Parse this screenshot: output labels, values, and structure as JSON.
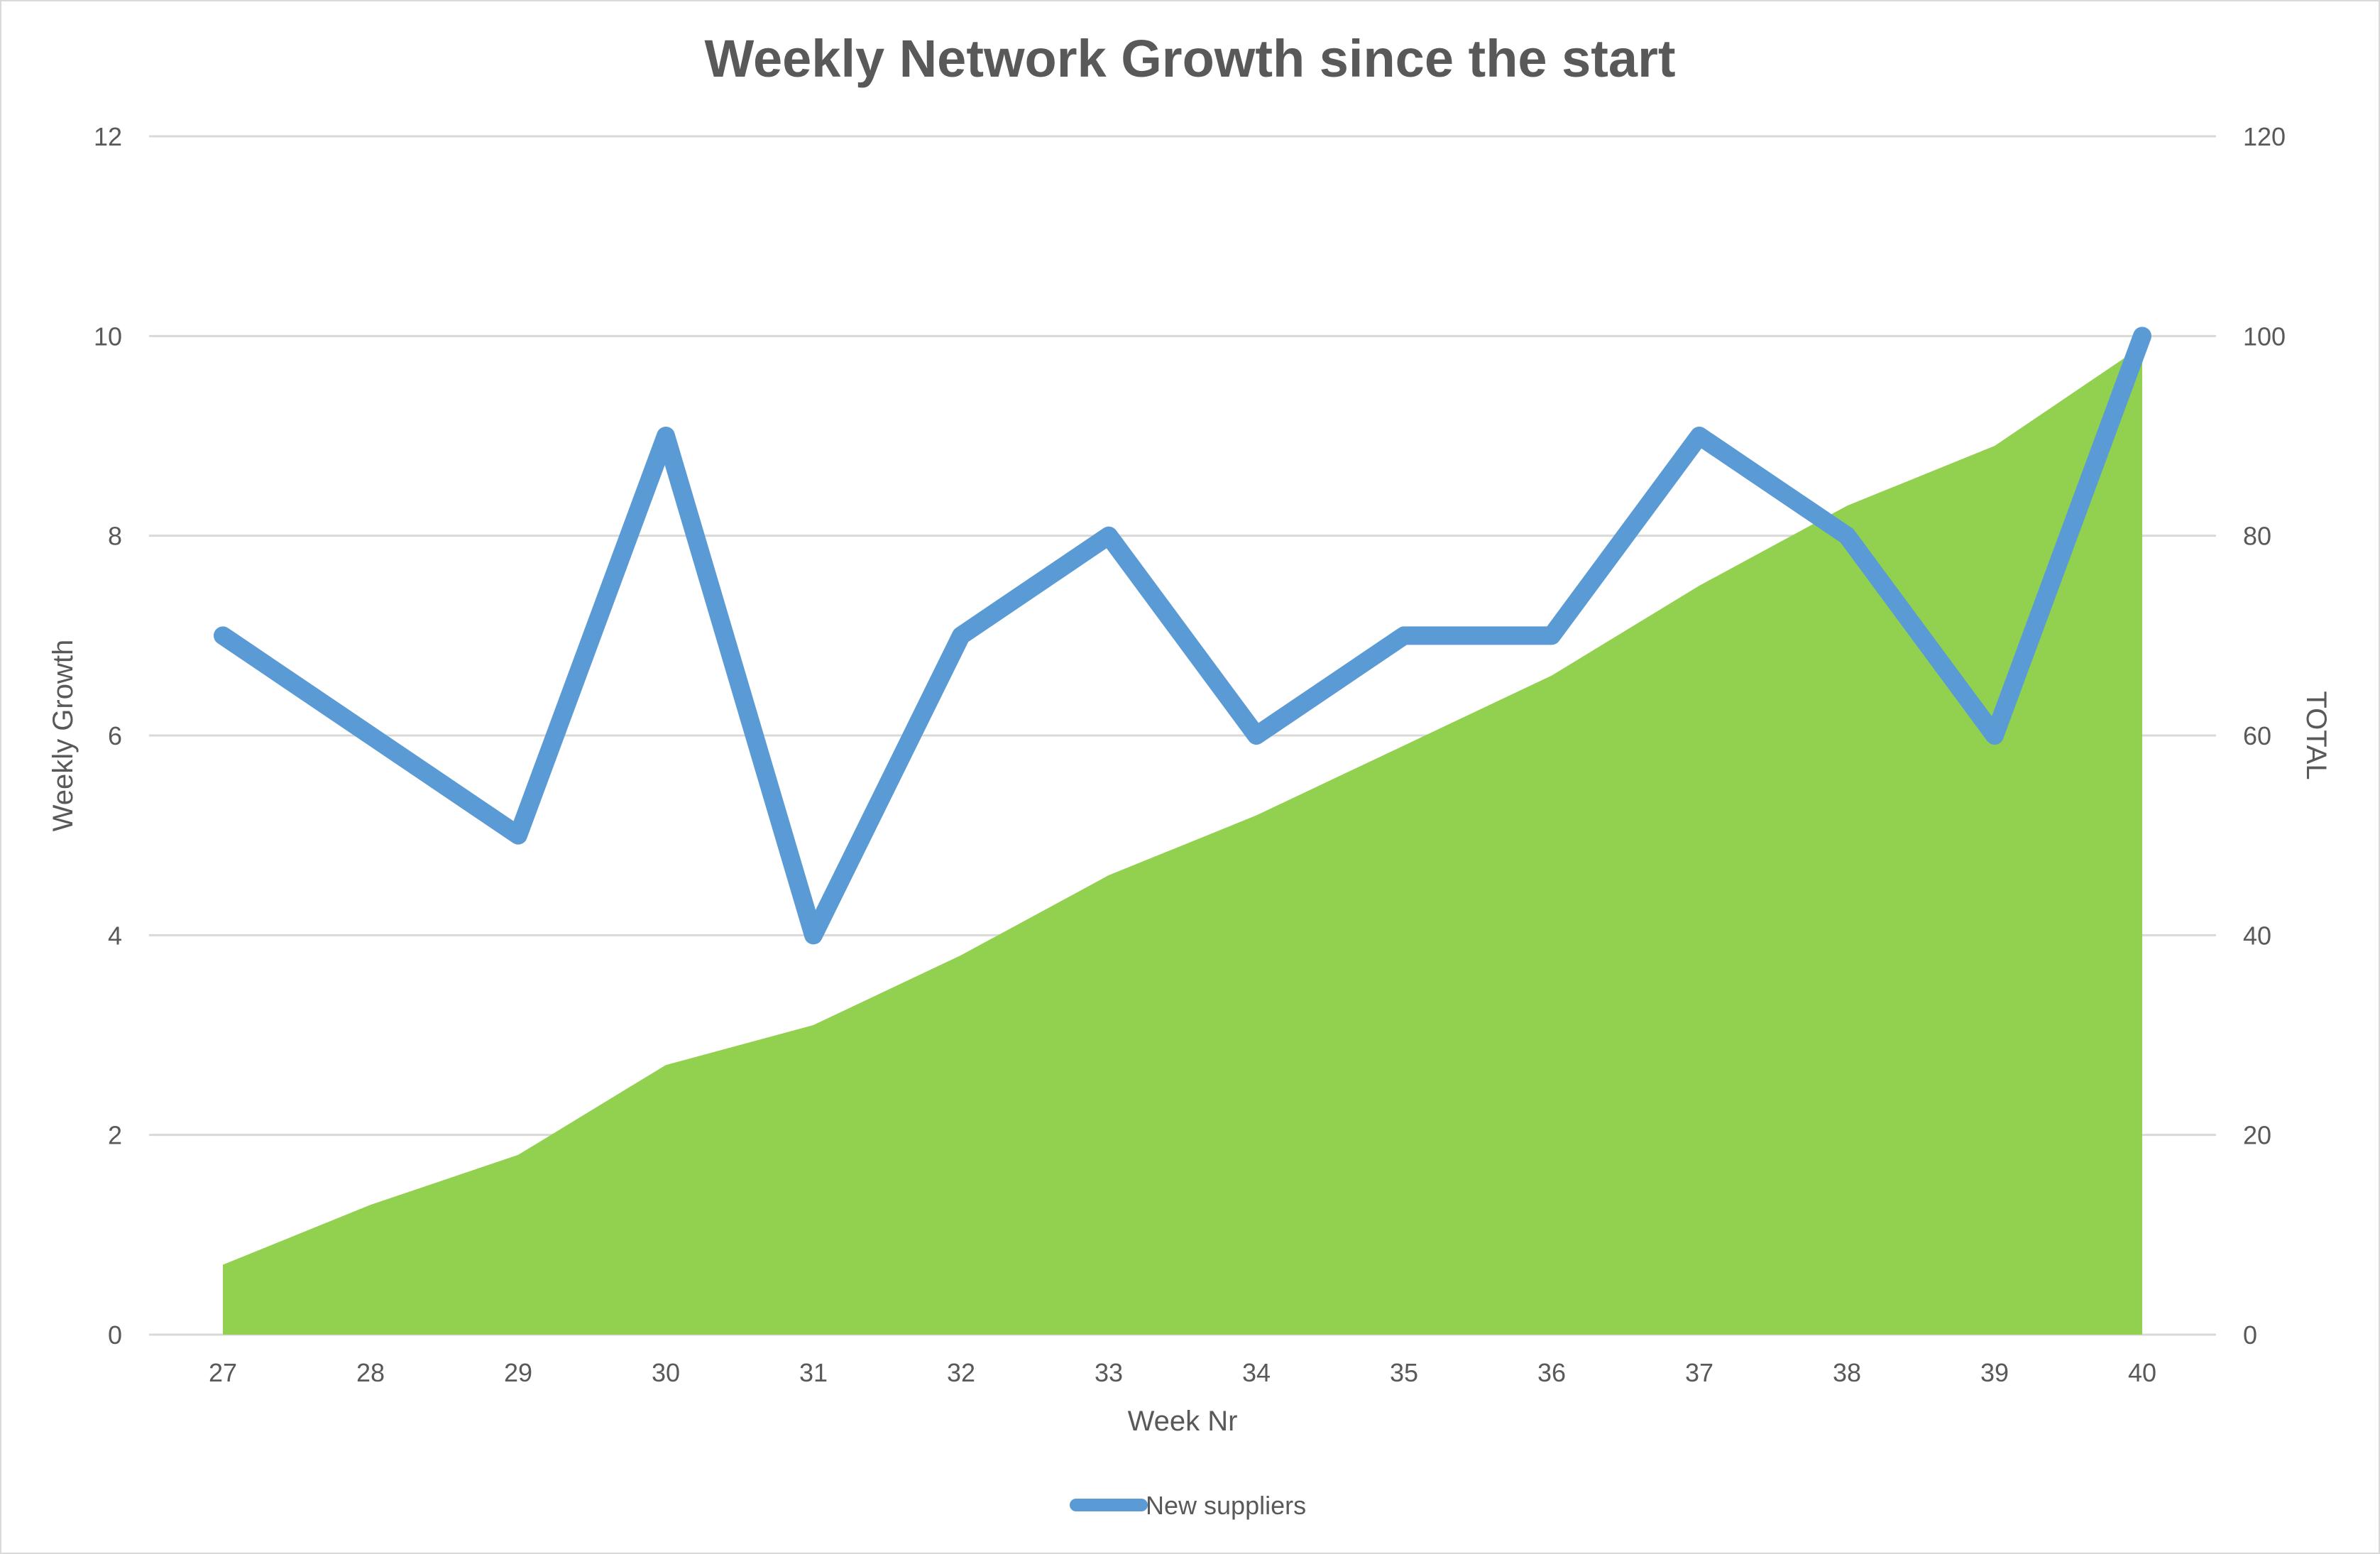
{
  "chart_data": {
    "type": "line",
    "title": "Weekly Network Growth since the start",
    "xlabel": "Week Nr",
    "ylabel": "Weekly Growth",
    "y2label": "TOTAL",
    "categories": [
      "27",
      "28",
      "29",
      "30",
      "31",
      "32",
      "33",
      "34",
      "35",
      "36",
      "37",
      "38",
      "39",
      "40"
    ],
    "ylim": [
      0,
      12
    ],
    "y2lim": [
      0,
      120
    ],
    "yticks": [
      "0",
      "2",
      "4",
      "6",
      "8",
      "10",
      "12"
    ],
    "y2ticks": [
      "0",
      "20",
      "40",
      "60",
      "80",
      "100",
      "120"
    ],
    "grid": true,
    "legend_position": "bottom",
    "series": [
      {
        "name": "New suppliers",
        "type": "line",
        "axis": "left",
        "color": "#5b9bd5",
        "values": [
          7,
          6,
          5,
          9,
          4,
          7,
          8,
          6,
          7,
          7,
          9,
          8,
          6,
          10
        ]
      },
      {
        "type": "area",
        "axis": "right",
        "color": "#92d050",
        "values": [
          7,
          13,
          18,
          27,
          31,
          38,
          46,
          52,
          59,
          66,
          75,
          83,
          89,
          99
        ]
      }
    ]
  }
}
